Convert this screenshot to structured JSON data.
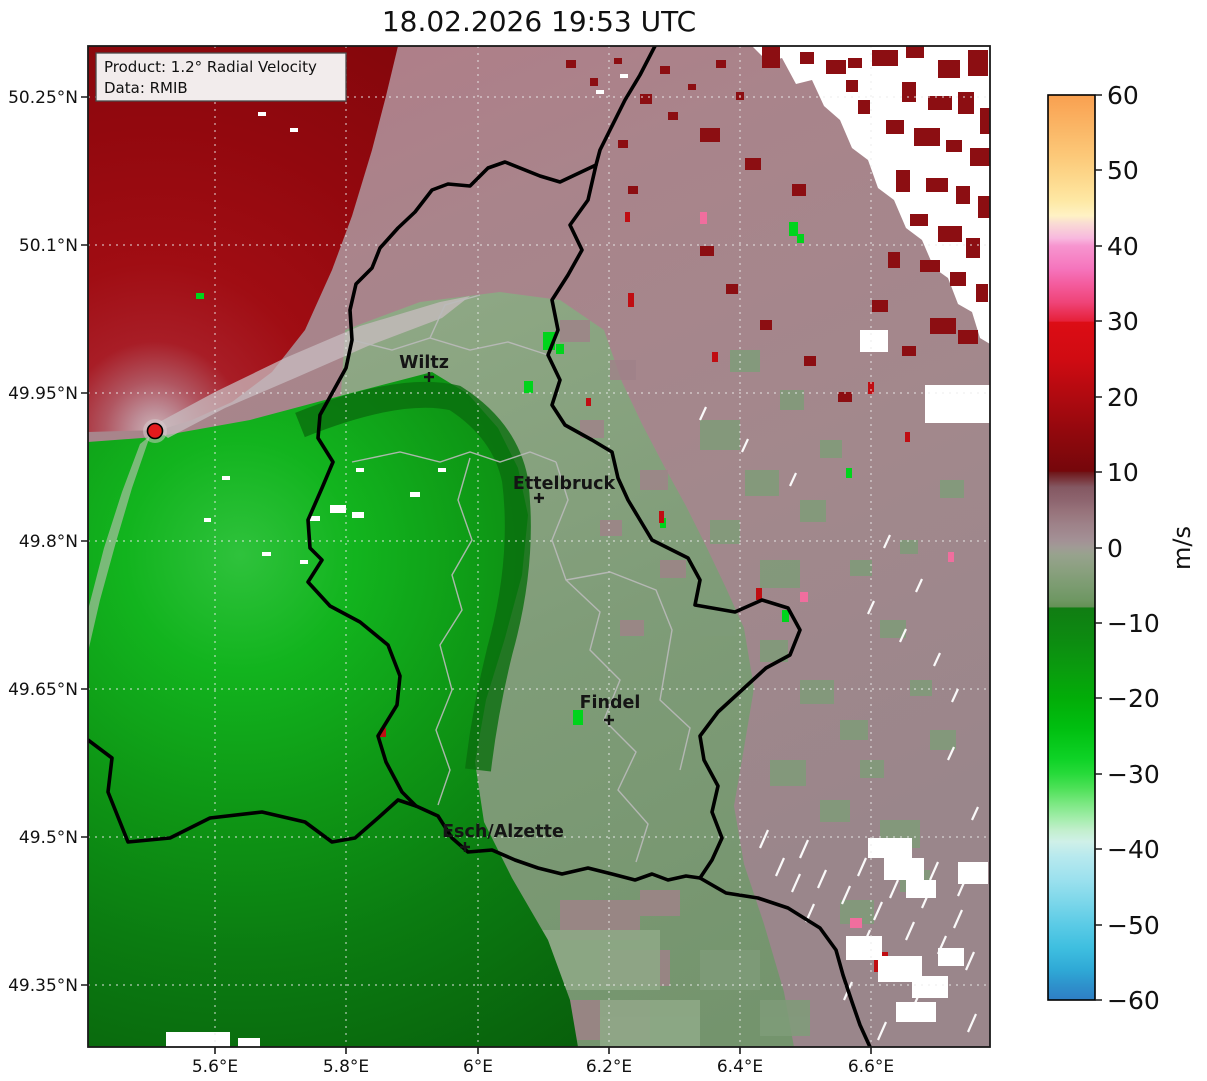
{
  "chart_data": {
    "type": "heatmap",
    "title": "18.02.2026 19:53 UTC",
    "product_line": "Product: 1.2° Radial Velocity",
    "source_line": "Data: RMIB",
    "units": "m/s",
    "projection": "longitude/latitude",
    "xlim": [
      5.41,
      6.78
    ],
    "ylim": [
      49.29,
      50.3
    ],
    "grid": true,
    "lon_ticks": [
      "5.6°E",
      "5.8°E",
      "6°E",
      "6.2°E",
      "6.4°E",
      "6.6°E"
    ],
    "lat_ticks": [
      "50.25°N",
      "50.1°N",
      "49.95°N",
      "49.8°N",
      "49.65°N",
      "49.5°N",
      "49.35°N"
    ],
    "colorbar": {
      "label": "m/s",
      "vmin": -60,
      "vmax": 60,
      "position": "right",
      "ticks": [
        "60",
        "50",
        "40",
        "30",
        "20",
        "10",
        "0",
        "−10",
        "−20",
        "−30",
        "−40",
        "−50",
        "−60"
      ],
      "stops": [
        {
          "v": 60,
          "c": "#f9a050"
        },
        {
          "v": 56,
          "c": "#fab464"
        },
        {
          "v": 52,
          "c": "#fcc878"
        },
        {
          "v": 49,
          "c": "#fdd88c"
        },
        {
          "v": 46,
          "c": "#fee8a4"
        },
        {
          "v": 44,
          "c": "#fff2c4"
        },
        {
          "v": 43,
          "c": "#f9dcd4"
        },
        {
          "v": 41,
          "c": "#f8b8de"
        },
        {
          "v": 40,
          "c": "#f795cf"
        },
        {
          "v": 37,
          "c": "#f575bd"
        },
        {
          "v": 35,
          "c": "#f45d9f"
        },
        {
          "v": 32.5,
          "c": "#ef4478"
        },
        {
          "v": 30,
          "c": "#e62039"
        },
        {
          "v": 29.9,
          "c": "#dc0d15"
        },
        {
          "v": 25,
          "c": "#d00b12"
        },
        {
          "v": 20,
          "c": "#b00a10"
        },
        {
          "v": 15,
          "c": "#90080d"
        },
        {
          "v": 10.1,
          "c": "#75070b"
        },
        {
          "v": 10,
          "c": "#6f1518"
        },
        {
          "v": 8,
          "c": "#845862"
        },
        {
          "v": 6,
          "c": "#8f6771"
        },
        {
          "v": 5,
          "c": "#967179"
        },
        {
          "v": 3,
          "c": "#9e8289"
        },
        {
          "v": 1,
          "c": "#a39095"
        },
        {
          "v": 0,
          "c": "#a09b95"
        },
        {
          "v": -1,
          "c": "#97a28d"
        },
        {
          "v": -3,
          "c": "#8aa07f"
        },
        {
          "v": -5,
          "c": "#7c9c71"
        },
        {
          "v": -7,
          "c": "#6e9762"
        },
        {
          "v": -7.9,
          "c": "#649156"
        },
        {
          "v": -8,
          "c": "#107d13"
        },
        {
          "v": -12,
          "c": "#0d8a11"
        },
        {
          "v": -16,
          "c": "#0a9b0e"
        },
        {
          "v": -20,
          "c": "#02ad08"
        },
        {
          "v": -24,
          "c": "#00bf10"
        },
        {
          "v": -28,
          "c": "#0ed226"
        },
        {
          "v": -30,
          "c": "#27da3a"
        },
        {
          "v": -32,
          "c": "#4fe159"
        },
        {
          "v": -34,
          "c": "#7ce883"
        },
        {
          "v": -36,
          "c": "#a5edad"
        },
        {
          "v": -37.5,
          "c": "#c2efcd"
        },
        {
          "v": -39,
          "c": "#cff0e8"
        },
        {
          "v": -41,
          "c": "#b7e9ee"
        },
        {
          "v": -44,
          "c": "#9ce1ee"
        },
        {
          "v": -47,
          "c": "#7cd7ea"
        },
        {
          "v": -50,
          "c": "#5bcbe6"
        },
        {
          "v": -53,
          "c": "#3fbfe0"
        },
        {
          "v": -56,
          "c": "#2fa9d6"
        },
        {
          "v": -58,
          "c": "#2e92cc"
        },
        {
          "v": -60,
          "c": "#2e7ec4"
        }
      ]
    },
    "radar_site": {
      "lon": 5.51,
      "lat": 49.91,
      "marker": "red dot with black edge"
    },
    "cities": [
      {
        "name": "Wiltz",
        "lon": 5.93,
        "lat": 49.97
      },
      {
        "name": "Ettelbruck",
        "lon": 6.1,
        "lat": 49.84
      },
      {
        "name": "Findel",
        "lon": 6.2,
        "lat": 49.62
      },
      {
        "name": "Esch/Alzette",
        "lon": 5.98,
        "lat": 49.49
      }
    ],
    "field_regions": [
      {
        "zone": "west / northwest of radar",
        "radial_velocity_ms": "+10 to +25",
        "appearance": "deep dark red lobe"
      },
      {
        "zone": "north and east (N Luxembourg, Germany)",
        "radial_velocity_ms": "0 to +8",
        "appearance": "gray-mauve"
      },
      {
        "zone": "south-southwest of radar (Belgium/France)",
        "radial_velocity_ms": "-25 to -8",
        "appearance": "saturated green lobe"
      },
      {
        "zone": "central/southern Luxembourg",
        "radial_velocity_ms": "-6 to 0",
        "appearance": "gray-green (sage)"
      },
      {
        "zone": "northeast corner",
        "radial_velocity_ms": "no data with +10..+25 clutter speckle",
        "appearance": "white gaps with dark red blocks"
      },
      {
        "zone": "southeast corner",
        "radial_velocity_ms": "mixed -5 to +5 with data gaps",
        "appearance": "mauve/sage patches, white streaks"
      },
      {
        "zone": "zero isodop",
        "radial_velocity_ms": "0",
        "appearance": "pale gray band running NE and SSW from the radar"
      }
    ],
    "colors": {
      "deep_red": "#92080e",
      "mauve": "#a8868c",
      "sage_green": "#7f9c78",
      "bright_green": "#12b41e",
      "dark_green": "#0a6e0e",
      "no_data": "#ffffff",
      "radar_dot": "#e31a1c",
      "border": "#000000",
      "internal_border": "#bbbbbb"
    }
  }
}
